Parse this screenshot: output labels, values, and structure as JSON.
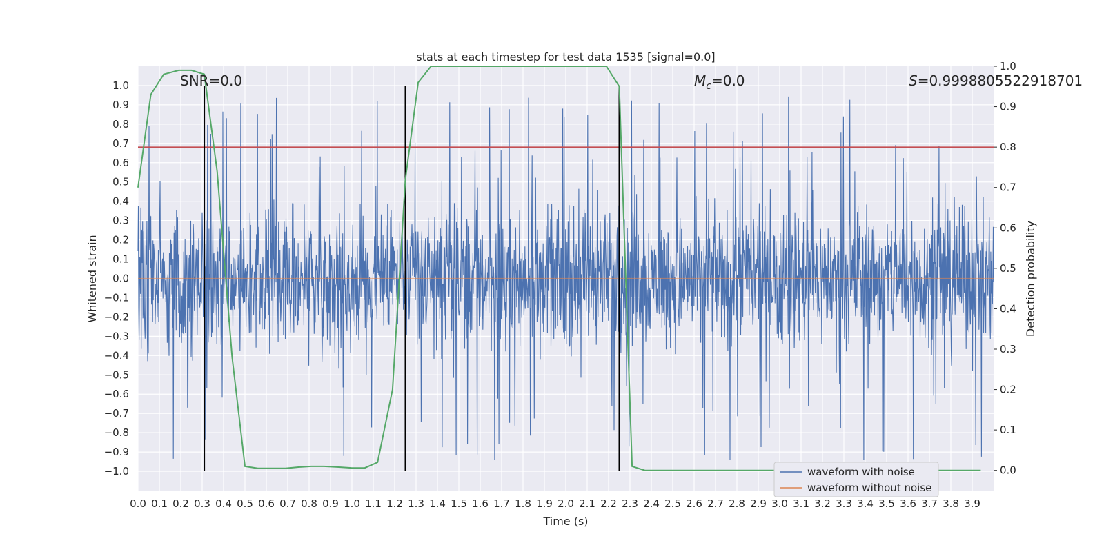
{
  "chart_data": {
    "type": "line",
    "title": "stats at each timestep for test data 1535 [signal=0.0]",
    "xlabel": "Time (s)",
    "ylabel": "Whitened strain",
    "ylabel_right": "Detection probability",
    "xlim": [
      0.0,
      4.0
    ],
    "ylim": [
      -1.1,
      1.1
    ],
    "ylim_right": [
      -0.05,
      1.0
    ],
    "x_ticks": [
      "0.0",
      "0.1",
      "0.2",
      "0.3",
      "0.4",
      "0.5",
      "0.6",
      "0.7",
      "0.8",
      "0.9",
      "1.0",
      "1.1",
      "1.2",
      "1.3",
      "1.4",
      "1.5",
      "1.6",
      "1.7",
      "1.8",
      "1.9",
      "2.0",
      "2.1",
      "2.2",
      "2.3",
      "2.4",
      "2.5",
      "2.6",
      "2.7",
      "2.8",
      "2.9",
      "3.0",
      "3.1",
      "3.2",
      "3.3",
      "3.4",
      "3.5",
      "3.6",
      "3.7",
      "3.8",
      "3.9"
    ],
    "y_ticks": [
      "1.0",
      "0.9",
      "0.8",
      "0.7",
      "0.6",
      "0.5",
      "0.4",
      "0.3",
      "0.2",
      "0.1",
      "0.0",
      "−0.1",
      "−0.2",
      "−0.3",
      "−0.4",
      "−0.5",
      "−0.6",
      "−0.7",
      "−0.8",
      "−0.9",
      "−1.0"
    ],
    "y_ticks_right": [
      "1.0",
      "0.9",
      "0.8",
      "0.7",
      "0.6",
      "0.5",
      "0.4",
      "0.3",
      "0.2",
      "0.1",
      "0.0"
    ],
    "grid": true,
    "legend_position": "lower-right",
    "annotations": {
      "snr": "SNR=0.0",
      "mc_symbol": "M",
      "mc_sub": "c",
      "mc_value": "=0.0",
      "s_symbol": "S",
      "s_value": "=0.999880552291870​1"
    },
    "threshold": {
      "value": 0.8,
      "axis": "right",
      "color": "#c44e52"
    },
    "vertical_markers": [
      0.31,
      1.25,
      2.25
    ],
    "series": [
      {
        "name": "waveform with noise",
        "color": "#4c72b0",
        "description_of_shape": "dense noise filling roughly -0.4 to 0.4 with spikes up to ±1.0 over 0–4 s",
        "noise_amplitude": 0.4,
        "spike_max": 1.0
      },
      {
        "name": "waveform without noise",
        "color": "#dd8452",
        "values_constant": 0.0
      },
      {
        "name": "detection probability",
        "color": "#55a868",
        "axis": "right",
        "x": [
          0.0,
          0.06,
          0.12,
          0.19,
          0.25,
          0.31,
          0.37,
          0.44,
          0.5,
          0.56,
          0.62,
          0.69,
          0.75,
          0.81,
          0.87,
          0.94,
          1.0,
          1.06,
          1.12,
          1.19,
          1.25,
          1.31,
          1.37,
          1.44,
          1.5,
          1.56,
          1.62,
          1.69,
          1.75,
          1.81,
          1.87,
          1.94,
          2.0,
          2.06,
          2.12,
          2.19,
          2.25,
          2.31,
          2.37,
          2.44,
          2.5,
          2.56,
          2.62,
          2.69,
          2.75,
          2.81,
          2.87,
          2.94,
          3.0,
          3.06,
          3.12,
          3.19,
          3.25,
          3.31,
          3.37,
          3.44,
          3.5,
          3.56,
          3.62,
          3.69,
          3.75,
          3.81,
          3.87,
          3.94
        ],
        "values": [
          0.7,
          0.93,
          0.98,
          0.99,
          0.99,
          0.98,
          0.74,
          0.28,
          0.01,
          0.005,
          0.005,
          0.005,
          0.008,
          0.01,
          0.01,
          0.008,
          0.006,
          0.006,
          0.02,
          0.2,
          0.72,
          0.96,
          1.0,
          1.0,
          1.0,
          1.0,
          1.0,
          1.0,
          1.0,
          1.0,
          1.0,
          1.0,
          1.0,
          1.0,
          1.0,
          1.0,
          0.95,
          0.01,
          0.0,
          0.0,
          0.0,
          0.0,
          0.0,
          0.0,
          0.0,
          0.0,
          0.0,
          0.0,
          0.0,
          0.0,
          0.0,
          0.0,
          0.0,
          0.0,
          0.0,
          0.0,
          0.0,
          0.0,
          0.0,
          0.0,
          0.0,
          0.0,
          0.0,
          0.0
        ]
      }
    ]
  }
}
